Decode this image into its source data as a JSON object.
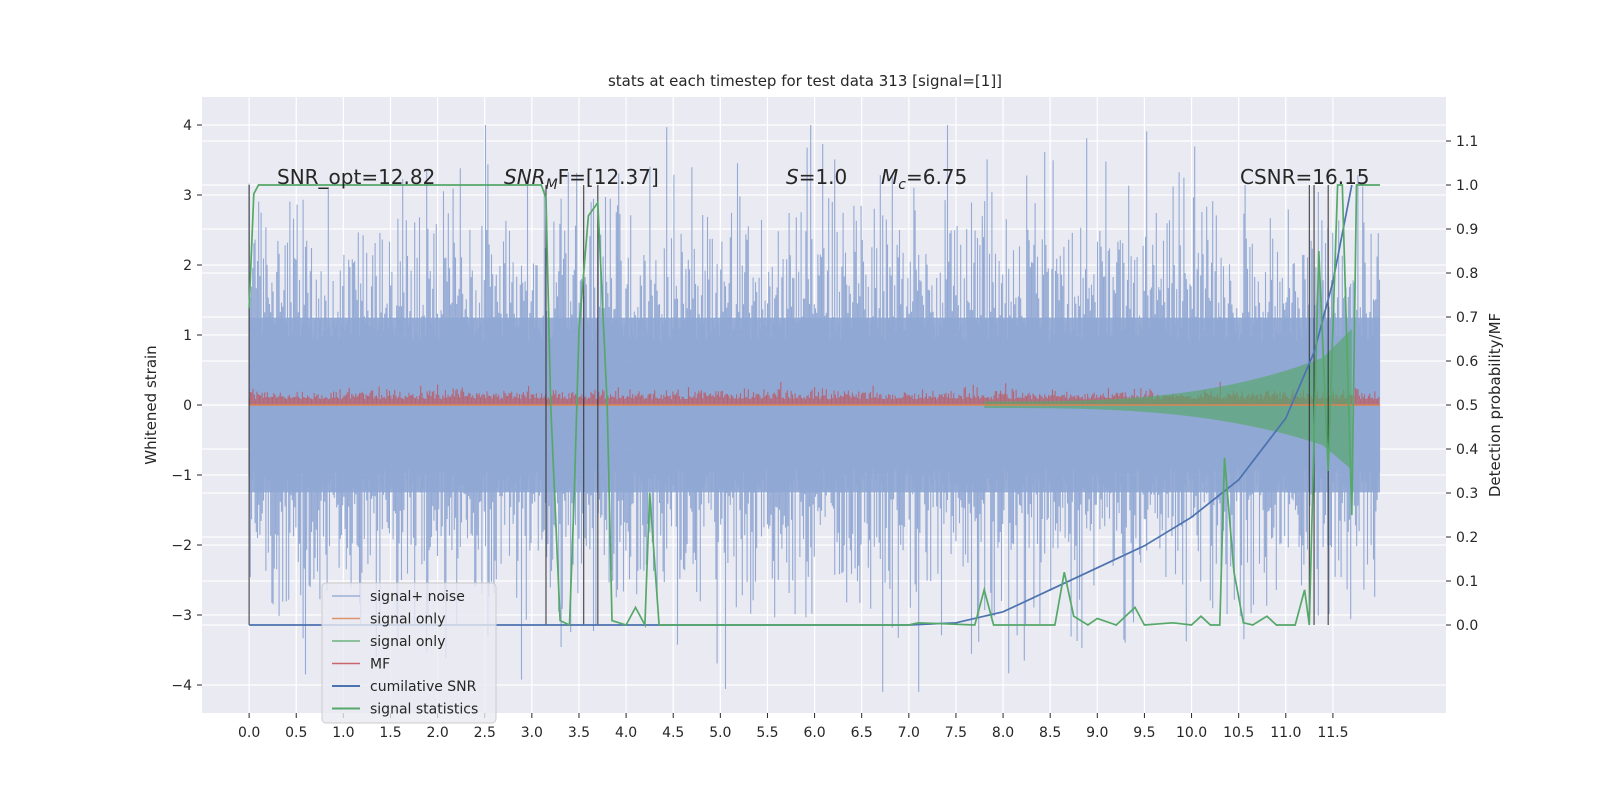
{
  "chart_data": {
    "type": "line",
    "title": "stats at each timestep for test data 313 [signal=[1]]",
    "ylabel_left": "Whitened strain",
    "ylabel_right": "Detection probability/MF",
    "xlim": [
      -0.5,
      12.7
    ],
    "ylim_left": [
      -4.4,
      4.4
    ],
    "ylim_right": [
      -0.2,
      1.2
    ],
    "x_ticks": [
      "0.0",
      "0.5",
      "1.0",
      "1.5",
      "2.0",
      "2.5",
      "3.0",
      "3.5",
      "4.0",
      "4.5",
      "5.0",
      "5.5",
      "6.0",
      "6.5",
      "7.0",
      "7.5",
      "8.0",
      "8.5",
      "9.0",
      "9.5",
      "10.0",
      "10.5",
      "11.0",
      "11.5"
    ],
    "y_ticks_left": [
      "4",
      "3",
      "2",
      "1",
      "0",
      "−1",
      "−2",
      "−3",
      "−4"
    ],
    "y_ticks_right": [
      "1.1",
      "1.0",
      "0.9",
      "0.8",
      "0.7",
      "0.6",
      "0.5",
      "0.4",
      "0.3",
      "0.2",
      "0.1",
      "0.0"
    ],
    "grid": true,
    "legend_position": "lower-left",
    "annotations": [
      {
        "prefix": "SNR_opt=12.82",
        "sub": "",
        "suffix": ""
      },
      {
        "prefix": "SNR",
        "sub": "M",
        "suffix": "F=[12.37]"
      },
      {
        "prefix": "S",
        "sub": "",
        "suffix": "=1.0"
      },
      {
        "prefix": "M",
        "sub": "c",
        "suffix": "=6.75"
      },
      {
        "prefix": "CSNR=16.15",
        "sub": "",
        "suffix": ""
      }
    ],
    "series": [
      {
        "name": "signal+ noise",
        "color": "#8fa7d3",
        "axis": "left",
        "kind": "noise",
        "t_range": [
          0,
          12.0
        ],
        "amplitude_range": [
          -4.1,
          4.0
        ]
      },
      {
        "name": "signal only",
        "color": "#dd8452",
        "axis": "left",
        "kind": "zero",
        "t_range": [
          0,
          12.0
        ]
      },
      {
        "name": "signal only",
        "color": "#55a868",
        "axis": "left",
        "kind": "chirp_envelope",
        "t_range": [
          7.8,
          11.7
        ],
        "peak": 0.85
      },
      {
        "name": "MF",
        "color": "#c44e52",
        "axis": "left",
        "kind": "band",
        "t_range": [
          0,
          12.0
        ],
        "amplitude_range": [
          0,
          0.3
        ]
      },
      {
        "name": "cumilative SNR",
        "color": "#4c72b0",
        "axis": "right",
        "points": [
          [
            0,
            0
          ],
          [
            7.0,
            0
          ],
          [
            7.5,
            0.005
          ],
          [
            8.0,
            0.03
          ],
          [
            8.5,
            0.08
          ],
          [
            9.0,
            0.13
          ],
          [
            9.5,
            0.18
          ],
          [
            10.0,
            0.245
          ],
          [
            10.5,
            0.33
          ],
          [
            11.0,
            0.47
          ],
          [
            11.3,
            0.62
          ],
          [
            11.5,
            0.78
          ],
          [
            11.7,
            1.0
          ]
        ]
      },
      {
        "name": "signal statistics",
        "color": "#55a868",
        "axis": "right",
        "points": [
          [
            0,
            0.72
          ],
          [
            0.05,
            0.98
          ],
          [
            0.1,
            1.0
          ],
          [
            3.1,
            1.0
          ],
          [
            3.15,
            0.97
          ],
          [
            3.2,
            0.5
          ],
          [
            3.3,
            0.01
          ],
          [
            3.4,
            0.0
          ],
          [
            3.45,
            0.3
          ],
          [
            3.5,
            0.67
          ],
          [
            3.6,
            0.93
          ],
          [
            3.7,
            0.96
          ],
          [
            3.8,
            0.5
          ],
          [
            3.85,
            0.01
          ],
          [
            4.0,
            0.0
          ],
          [
            4.1,
            0.04
          ],
          [
            4.2,
            0.0
          ],
          [
            4.25,
            0.3
          ],
          [
            4.35,
            0.0
          ],
          [
            7.0,
            0.0
          ],
          [
            7.1,
            0.005
          ],
          [
            7.7,
            0.0
          ],
          [
            7.8,
            0.08
          ],
          [
            7.9,
            0.0
          ],
          [
            8.55,
            0.0
          ],
          [
            8.65,
            0.12
          ],
          [
            8.75,
            0.02
          ],
          [
            8.9,
            0.0
          ],
          [
            9.0,
            0.015
          ],
          [
            9.2,
            0.0
          ],
          [
            9.35,
            0.03
          ],
          [
            9.4,
            0.04
          ],
          [
            9.5,
            0.0
          ],
          [
            9.8,
            0.005
          ],
          [
            10.0,
            0.0
          ],
          [
            10.1,
            0.02
          ],
          [
            10.2,
            0.0
          ],
          [
            10.3,
            0.0
          ],
          [
            10.35,
            0.38
          ],
          [
            10.45,
            0.12
          ],
          [
            10.55,
            0.005
          ],
          [
            10.65,
            0.0
          ],
          [
            10.8,
            0.02
          ],
          [
            10.9,
            0.0
          ],
          [
            11.1,
            0.0
          ],
          [
            11.2,
            0.08
          ],
          [
            11.25,
            0.0
          ],
          [
            11.35,
            0.85
          ],
          [
            11.45,
            0.35
          ],
          [
            11.55,
            1.0
          ],
          [
            11.6,
            1.0
          ],
          [
            11.7,
            0.25
          ],
          [
            11.75,
            1.0
          ],
          [
            12.0,
            1.0
          ]
        ]
      }
    ],
    "vertical_markers": [
      0.0,
      3.15,
      3.55,
      3.7,
      11.25,
      11.3,
      11.45
    ]
  }
}
